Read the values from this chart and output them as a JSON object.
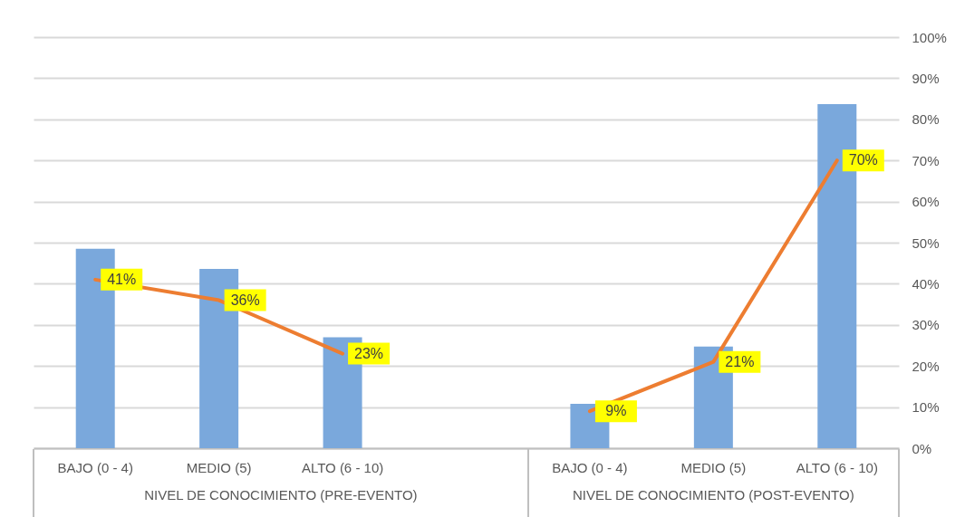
{
  "chart_data": {
    "type": "bar",
    "categories": [
      "BAJO (0 - 4)",
      "MEDIO (5)",
      "ALTO (6 - 10)",
      null,
      "BAJO (0 - 4)",
      "MEDIO (5)",
      "ALTO (6 - 10)"
    ],
    "series": [
      {
        "color": "#7aa8dc",
        "values": [
          48.5,
          43.6,
          27,
          null,
          10.8,
          24.7,
          83.7
        ]
      },
      {
        "type": "line",
        "color": "#ed7d31",
        "values": [
          41,
          36,
          23,
          null,
          9,
          21,
          70
        ],
        "value_labels": [
          "41%",
          "36%",
          "23%",
          null,
          "9%",
          "21%",
          "70%"
        ]
      }
    ],
    "ylim": [
      0,
      100
    ],
    "yticks": [
      {
        "value": 0,
        "label": "0%"
      },
      {
        "value": 10,
        "label": "10%"
      },
      {
        "value": 20,
        "label": "20%"
      },
      {
        "value": 30,
        "label": "30%"
      },
      {
        "value": 40,
        "label": "40%"
      },
      {
        "value": 50,
        "label": "50%"
      },
      {
        "value": 60,
        "label": "60%"
      },
      {
        "value": 70,
        "label": "70%"
      },
      {
        "value": 80,
        "label": "80%"
      },
      {
        "value": 90,
        "label": "90%"
      },
      {
        "value": 100,
        "label": "100%"
      }
    ],
    "annotations": [
      "NIVEL DE CONOCIMIENTO (PRE-EVENTO)",
      "NIVEL DE CONOCIMIENTO (POST-EVENTO)"
    ],
    "grid": true
  }
}
